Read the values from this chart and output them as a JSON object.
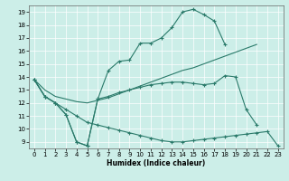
{
  "bg_color": "#cceee8",
  "line_color": "#2a7a6a",
  "grid_color": "#ffffff",
  "xlabel": "Humidex (Indice chaleur)",
  "xlim": [
    -0.5,
    23.5
  ],
  "ylim": [
    8.5,
    19.5
  ],
  "xticks": [
    0,
    1,
    2,
    3,
    4,
    5,
    6,
    7,
    8,
    9,
    10,
    11,
    12,
    13,
    14,
    15,
    16,
    17,
    18,
    19,
    20,
    21,
    22,
    23
  ],
  "yticks": [
    9,
    10,
    11,
    12,
    13,
    14,
    15,
    16,
    17,
    18,
    19
  ],
  "line1_x": [
    0,
    1,
    2,
    3,
    4,
    5,
    6,
    7,
    8,
    9,
    10,
    11,
    12,
    13,
    14,
    15,
    16,
    17,
    18
  ],
  "line1_y": [
    13.8,
    12.5,
    12.0,
    11.1,
    9.0,
    8.7,
    12.3,
    14.5,
    15.2,
    15.3,
    16.6,
    16.6,
    17.0,
    17.8,
    19.0,
    19.2,
    18.8,
    18.3,
    16.5
  ],
  "line2_x": [
    0,
    1,
    2,
    3,
    4,
    5,
    6,
    7,
    8,
    9,
    10,
    11,
    12,
    13,
    14,
    15,
    16,
    17,
    18,
    19,
    20,
    21
  ],
  "line2_y": [
    13.8,
    13.0,
    12.5,
    12.3,
    12.1,
    12.0,
    12.2,
    12.4,
    12.7,
    13.0,
    13.3,
    13.6,
    13.9,
    14.2,
    14.5,
    14.7,
    15.0,
    15.3,
    15.6,
    15.9,
    16.2,
    16.5
  ],
  "line3_x": [
    0,
    1,
    2,
    3,
    4,
    5,
    6,
    7,
    8,
    9,
    10,
    11,
    12,
    13,
    14,
    15,
    16,
    17,
    18,
    19,
    20,
    21
  ],
  "line3_y": [
    13.8,
    12.5,
    12.0,
    11.1,
    9.0,
    8.7,
    12.3,
    12.5,
    12.8,
    13.0,
    13.2,
    13.4,
    13.5,
    13.6,
    13.6,
    13.5,
    13.4,
    13.5,
    14.1,
    14.0,
    11.5,
    10.3
  ],
  "line4_x": [
    0,
    1,
    2,
    3,
    4,
    5,
    6,
    7,
    8,
    9,
    10,
    11,
    12,
    13,
    14,
    15,
    16,
    17,
    18,
    19,
    20,
    21,
    22,
    23
  ],
  "line4_y": [
    13.8,
    12.5,
    12.0,
    11.5,
    11.0,
    10.5,
    10.3,
    10.1,
    9.9,
    9.7,
    9.5,
    9.3,
    9.1,
    9.0,
    9.0,
    9.1,
    9.2,
    9.3,
    9.4,
    9.5,
    9.6,
    9.7,
    9.8,
    8.7
  ]
}
